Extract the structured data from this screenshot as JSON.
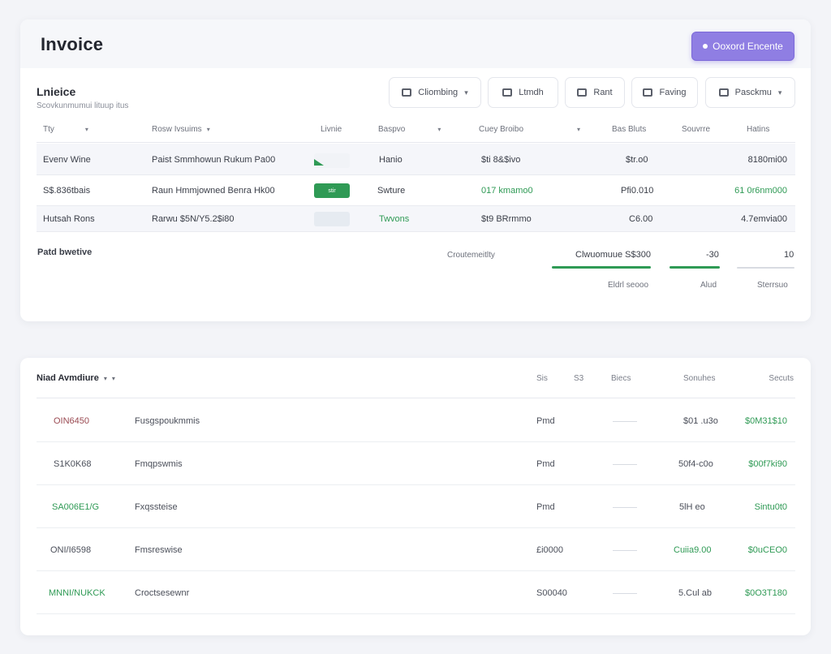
{
  "header": {
    "title": "Invoice",
    "primary_action": "Ooxord Encente"
  },
  "section": {
    "title": "Lnieice",
    "subtitle": "Scovkunmumui lituup itus"
  },
  "toolbar": [
    {
      "label": "Cliombing",
      "icon": "filter-icon",
      "has_caret": true
    },
    {
      "label": "Ltmdh",
      "icon": "calendar-icon",
      "has_caret": false
    },
    {
      "label": "Rant",
      "icon": "card-icon",
      "has_caret": false
    },
    {
      "label": "Faving",
      "icon": "card-icon",
      "has_caret": false
    },
    {
      "label": "Pasckmu",
      "icon": "card-icon",
      "has_caret": true
    }
  ],
  "table": {
    "columns": [
      "Tty",
      "Rosw Ivsuims",
      "Livnie",
      "Baspvo",
      "Cuey Broibo",
      "Bas Bluts",
      "Souvrre",
      "Hatins"
    ],
    "rows": [
      {
        "c1": "Evenv Wine",
        "c2": "Paist Smmhowun Rukum Pa00",
        "bar": "small",
        "c4": "Hanio",
        "c5": "$ti 8&$ivo",
        "c5_green": false,
        "c6": "$tr.o0",
        "c8": "8180mi00",
        "c8_green": false
      },
      {
        "c1": "S$.836tbais",
        "c2": "Raun Hmmjowned Benra Hk00",
        "bar": "full",
        "bar_label": "stir",
        "c4": "Swture",
        "c5": "017 kmamo0",
        "c5_green": true,
        "c6": "Pfi0.010",
        "c8": "61 0r6nm000",
        "c8_green": true
      },
      {
        "c1": "Hutsah Rons",
        "c2": "Rarwu $5N/Y5.2$i80",
        "bar": "empty",
        "c4": "Twvons",
        "c5": "$t9 BRrmmo",
        "c5_green": false,
        "c6": "C6.00",
        "c8": "4.7emvia00",
        "c8_green": false
      }
    ],
    "footer": {
      "label": "Patd bwetive",
      "summary_label": "Croutemeitlty",
      "total_value": "Clwuomuue S$300",
      "total_caption": "Eldrl seooo",
      "mid_value": "-30",
      "mid_caption": "Alud",
      "last_value": "10",
      "last_caption": "Sterrsuo"
    }
  },
  "payments": {
    "title": "Niad Avmdiure",
    "columns": [
      "Sis",
      "S3",
      "Biecs",
      "Sonuhes",
      "Secuts"
    ],
    "rows": [
      {
        "id": "OIN6450",
        "id_color": "#9a4a52",
        "name": "Fusgspoukmmis",
        "status": "Pmd",
        "amount": "$01 .u3o",
        "amount_green": false,
        "total": "$0M31$10"
      },
      {
        "id": "S1K0K68",
        "id_color": "#4b4f5a",
        "name": "Fmqpswmis",
        "status": "Pmd",
        "amount": "50f4-c0o",
        "amount_green": false,
        "total": "$00f7ki90"
      },
      {
        "id": "SA006E1/G",
        "id_color": "#2f9a55",
        "name": "Fxqssteise",
        "status": "Pmd",
        "amount": "5lH eo",
        "amount_green": false,
        "total": "Sintu0t0"
      },
      {
        "id": "ONI/I6598",
        "id_color": "#4b4f5a",
        "name": "Fmsreswise",
        "status": "£i0000",
        "amount": "Cuiia9.00",
        "amount_green": true,
        "total": "$0uCEO0"
      },
      {
        "id": "MNNI/NUKCK",
        "id_color": "#2f9a55",
        "name": "Croctsesewnr",
        "status": "S00040",
        "amount": "5.Cul ab",
        "amount_green": false,
        "total": "$0O3T180"
      }
    ]
  },
  "colors": {
    "accent": "#8f7ee3",
    "positive": "#2f9a55",
    "bar_empty": "#e6ebf1"
  }
}
